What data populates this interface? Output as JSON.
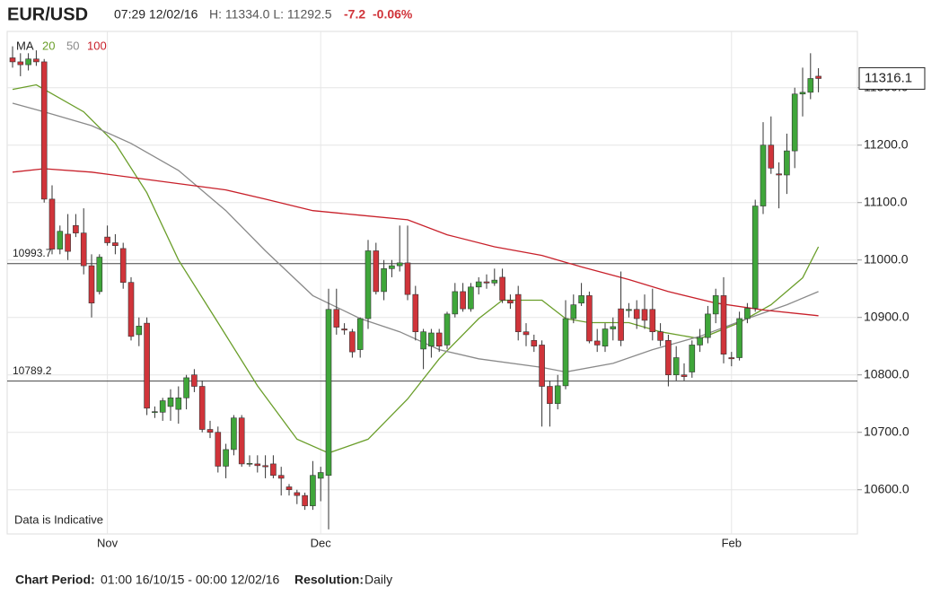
{
  "header": {
    "symbol": "EUR/USD",
    "time": "07:29 12/02/16",
    "high_low": "H: 11334.0 L: 11292.5",
    "change": "-7.2",
    "change_pct": "-0.06%"
  },
  "footer": {
    "period_label": "Chart Period:",
    "period": "01:00 16/10/15 - 00:00 12/02/16",
    "resolution_label": "Resolution:",
    "resolution": "Daily"
  },
  "chart_data": {
    "type": "candlestick",
    "note": "Data is Indicative",
    "legend_label": "MA",
    "categories": [
      null,
      null,
      null,
      null,
      null,
      null,
      null,
      null,
      null,
      null,
      null,
      null,
      "Nov",
      null,
      null,
      null,
      null,
      null,
      null,
      null,
      null,
      null,
      null,
      null,
      null,
      null,
      null,
      null,
      null,
      null,
      null,
      null,
      null,
      null,
      null,
      null,
      null,
      null,
      null,
      "Dec",
      null,
      null,
      null,
      null,
      null,
      null,
      null,
      null,
      null,
      null,
      null,
      null,
      null,
      null,
      null,
      null,
      null,
      null,
      null,
      null,
      null,
      null,
      null,
      null,
      null,
      null,
      null,
      null,
      null,
      null,
      null,
      null,
      null,
      null,
      null,
      null,
      null,
      null,
      null,
      null,
      null,
      null,
      null,
      null,
      null,
      null,
      null,
      null,
      null,
      null,
      null,
      "Feb",
      null,
      null,
      null,
      null,
      null,
      null,
      null,
      null,
      null,
      null,
      null
    ],
    "ohlc": [
      [
        11352,
        11372,
        11335,
        11345
      ],
      [
        11345,
        11360,
        11320,
        11340
      ],
      [
        11340,
        11360,
        11330,
        11350
      ],
      [
        11350,
        11365,
        11338,
        11345
      ],
      [
        11345,
        11350,
        11100,
        11106
      ],
      [
        11106,
        11130,
        11010,
        11019
      ],
      [
        11019,
        11060,
        11010,
        11050
      ],
      [
        11045,
        11080,
        11000,
        11015
      ],
      [
        11060,
        11080,
        11040,
        11047
      ],
      [
        11047,
        11090,
        10975,
        10990
      ],
      [
        10990,
        11010,
        10900,
        10925
      ],
      [
        10945,
        11010,
        10940,
        11005
      ],
      [
        11040,
        11060,
        11025,
        11030
      ],
      [
        11030,
        11045,
        11010,
        11025
      ],
      [
        11020,
        11030,
        10950,
        10961
      ],
      [
        10961,
        10970,
        10860,
        10867
      ],
      [
        10870,
        10900,
        10850,
        10885
      ],
      [
        10890,
        10900,
        10730,
        10742
      ],
      [
        10735,
        10745,
        10725,
        10736
      ],
      [
        10735,
        10760,
        10720,
        10755
      ],
      [
        10745,
        10775,
        10720,
        10760
      ],
      [
        10740,
        10780,
        10715,
        10760
      ],
      [
        10760,
        10800,
        10740,
        10795
      ],
      [
        10800,
        10810,
        10770,
        10780
      ],
      [
        10780,
        10790,
        10700,
        10705
      ],
      [
        10705,
        10720,
        10690,
        10700
      ],
      [
        10700,
        10710,
        10630,
        10641
      ],
      [
        10641,
        10680,
        10620,
        10670
      ],
      [
        10670,
        10730,
        10660,
        10725
      ],
      [
        10725,
        10730,
        10640,
        10645
      ],
      [
        10645,
        10660,
        10640,
        10646
      ],
      [
        10645,
        10660,
        10630,
        10642
      ],
      [
        10642,
        10660,
        10620,
        10640
      ],
      [
        10645,
        10660,
        10620,
        10625
      ],
      [
        10625,
        10640,
        10590,
        10620
      ],
      [
        10605,
        10610,
        10590,
        10600
      ],
      [
        10595,
        10600,
        10575,
        10590
      ],
      [
        10590,
        10595,
        10565,
        10572
      ],
      [
        10572,
        10650,
        10565,
        10625
      ],
      [
        10620,
        10640,
        10580,
        10630
      ],
      [
        10625,
        10950,
        10531,
        10914
      ],
      [
        10914,
        10950,
        10870,
        10883
      ],
      [
        10880,
        10890,
        10870,
        10878
      ],
      [
        10875,
        10880,
        10830,
        10840
      ],
      [
        10844,
        10900,
        10830,
        10898
      ],
      [
        10898,
        11035,
        10880,
        11016
      ],
      [
        11016,
        11030,
        10940,
        10945
      ],
      [
        10945,
        11000,
        10930,
        10985
      ],
      [
        10985,
        11000,
        10970,
        10990
      ],
      [
        10990,
        11060,
        10980,
        10995
      ],
      [
        10995,
        11060,
        10930,
        10940
      ],
      [
        10940,
        10955,
        10860,
        10875
      ],
      [
        10845,
        10880,
        10810,
        10875
      ],
      [
        10850,
        10880,
        10830,
        10873
      ],
      [
        10873,
        10880,
        10840,
        10850
      ],
      [
        10852,
        10910,
        10845,
        10906
      ],
      [
        10906,
        10960,
        10900,
        10945
      ],
      [
        10945,
        10960,
        10910,
        10915
      ],
      [
        10915,
        10960,
        10910,
        10953
      ],
      [
        10953,
        10970,
        10940,
        10962
      ],
      [
        10962,
        10975,
        10950,
        10960
      ],
      [
        10960,
        10985,
        10955,
        10965
      ],
      [
        10970,
        10985,
        10925,
        10930
      ],
      [
        10930,
        10940,
        10915,
        10925
      ],
      [
        10940,
        10955,
        10860,
        10875
      ],
      [
        10875,
        10890,
        10850,
        10870
      ],
      [
        10860,
        10870,
        10840,
        10850
      ],
      [
        10852,
        10860,
        10710,
        10780
      ],
      [
        10780,
        10790,
        10710,
        10750
      ],
      [
        10750,
        10800,
        10740,
        10781
      ],
      [
        10781,
        10930,
        10775,
        10898
      ],
      [
        10898,
        10940,
        10890,
        10922
      ],
      [
        10925,
        10960,
        10920,
        10938
      ],
      [
        10938,
        10945,
        10855,
        10859
      ],
      [
        10859,
        10880,
        10840,
        10852
      ],
      [
        10850,
        10890,
        10840,
        10880
      ],
      [
        10880,
        10900,
        10860,
        10884
      ],
      [
        10915,
        10980,
        10850,
        10860
      ],
      [
        10912,
        10925,
        10900,
        10914
      ],
      [
        10914,
        10930,
        10880,
        10898
      ],
      [
        10914,
        10940,
        10880,
        10895
      ],
      [
        10914,
        10950,
        10860,
        10875
      ],
      [
        10875,
        10890,
        10850,
        10860
      ],
      [
        10860,
        10870,
        10780,
        10800
      ],
      [
        10800,
        10850,
        10790,
        10830
      ],
      [
        10800,
        10820,
        10790,
        10797
      ],
      [
        10805,
        10860,
        10795,
        10852
      ],
      [
        10852,
        10880,
        10840,
        10865
      ],
      [
        10865,
        10920,
        10855,
        10906
      ],
      [
        10906,
        10950,
        10890,
        10938
      ],
      [
        10938,
        10970,
        10820,
        10836
      ],
      [
        10830,
        10840,
        10815,
        10828
      ],
      [
        10830,
        10910,
        10825,
        10898
      ],
      [
        10898,
        10925,
        10890,
        10916
      ],
      [
        10916,
        11105,
        10910,
        11094
      ],
      [
        11094,
        11240,
        11080,
        11200
      ],
      [
        11200,
        11250,
        11150,
        11160
      ],
      [
        11150,
        11170,
        11090,
        11148
      ],
      [
        11148,
        11220,
        11115,
        11190
      ],
      [
        11190,
        11300,
        11160,
        11289
      ],
      [
        11289,
        11335,
        11250,
        11292
      ],
      [
        11292,
        11360,
        11280,
        11316
      ],
      [
        11320,
        11334,
        11292,
        11316
      ]
    ],
    "up_color": "#3fa63a",
    "down_color": "#d0343a",
    "series": [
      {
        "name": "20",
        "color": "#6a9e2a",
        "x": [
          0,
          3,
          9,
          13,
          17,
          21,
          26,
          31,
          36,
          40,
          45,
          50,
          54,
          59,
          62,
          67,
          70,
          73,
          78,
          82,
          87,
          92,
          96,
          100,
          102
        ],
        "values": [
          11297,
          11305,
          11258,
          11203,
          11117,
          11000,
          10891,
          10781,
          10688,
          10664,
          10688,
          10758,
          10828,
          10898,
          10930,
          10930,
          10898,
          10891,
          10891,
          10875,
          10863,
          10891,
          10922,
          10969,
          11023
        ]
      },
      {
        "name": "50",
        "color": "#8a8a8a",
        "x": [
          0,
          4,
          10,
          15,
          21,
          27,
          32,
          38,
          44,
          49,
          54,
          59,
          67,
          70,
          76,
          81,
          87,
          93,
          98,
          102
        ],
        "values": [
          11273,
          11258,
          11234,
          11203,
          11156,
          11086,
          11016,
          10938,
          10898,
          10875,
          10844,
          10828,
          10813,
          10805,
          10820,
          10844,
          10867,
          10898,
          10922,
          10945
        ]
      },
      {
        "name": "100",
        "color": "#c8202a",
        "x": [
          0,
          4,
          10,
          15,
          21,
          27,
          32,
          38,
          44,
          50,
          55,
          61,
          67,
          72,
          78,
          83,
          89,
          95,
          102
        ],
        "values": [
          11153,
          11159,
          11153,
          11144,
          11133,
          11122,
          11106,
          11086,
          11078,
          11070,
          11044,
          11023,
          11008,
          10988,
          10966,
          10945,
          10925,
          10913,
          10903
        ]
      }
    ],
    "hlines": [
      10993.7,
      10789.2
    ],
    "last_price": 11316.1,
    "ylim": [
      10523,
      11398
    ],
    "yticks": [
      {
        "value": 10600,
        "label": "10600.0"
      },
      {
        "value": 10700,
        "label": "10700.0"
      },
      {
        "value": 10800,
        "label": "10800.0"
      },
      {
        "value": 10900,
        "label": "10900.0"
      },
      {
        "value": 11000,
        "label": "11000.0"
      },
      {
        "value": 11100,
        "label": "11100.0"
      },
      {
        "value": 11200,
        "label": "11200.0"
      },
      {
        "value": 11300,
        "label": "11300.0"
      }
    ],
    "grid": true
  }
}
